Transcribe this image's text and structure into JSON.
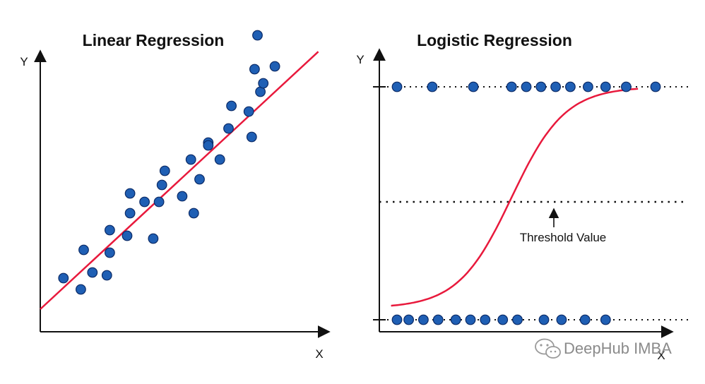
{
  "left_panel": {
    "title": "Linear Regression",
    "y_axis_label": "Y",
    "x_axis_label": "X"
  },
  "right_panel": {
    "title": "Logistic Regression",
    "y_axis_label": "Y",
    "x_axis_label": "X",
    "threshold_label": "Threshold Value"
  },
  "watermark": {
    "text": "DeepHub IMBA",
    "icon": "wechat-icon"
  },
  "colors": {
    "point_fill": "#1f5fb4",
    "point_stroke": "#0b2a66",
    "curve": "#e8193c",
    "axis": "#111111",
    "watermark": "#8a8a8a"
  },
  "chart_data": [
    {
      "type": "scatter",
      "title": "Linear Regression",
      "xlabel": "X",
      "ylabel": "Y",
      "xlim": [
        0,
        100
      ],
      "ylim": [
        0,
        100
      ],
      "grid": false,
      "points": [
        [
          8,
          19
        ],
        [
          14,
          15
        ],
        [
          15,
          29
        ],
        [
          18,
          21
        ],
        [
          23,
          20
        ],
        [
          24,
          28
        ],
        [
          24,
          36
        ],
        [
          30,
          34
        ],
        [
          31,
          42
        ],
        [
          31,
          49
        ],
        [
          36,
          46
        ],
        [
          39,
          33
        ],
        [
          41,
          46
        ],
        [
          42,
          52
        ],
        [
          43,
          57
        ],
        [
          49,
          48
        ],
        [
          52,
          61
        ],
        [
          53,
          42
        ],
        [
          55,
          54
        ],
        [
          58,
          67
        ],
        [
          58,
          66
        ],
        [
          62,
          61
        ],
        [
          65,
          72
        ],
        [
          66,
          80
        ],
        [
          72,
          78
        ],
        [
          73,
          69
        ],
        [
          74,
          93
        ],
        [
          75,
          105
        ],
        [
          76,
          85
        ],
        [
          77,
          88
        ],
        [
          81,
          94
        ]
      ],
      "fit_line": {
        "slope": 0.95,
        "intercept": 8
      }
    },
    {
      "type": "scatter",
      "title": "Logistic Regression",
      "xlabel": "X",
      "ylabel": "Y",
      "xlim": [
        0,
        100
      ],
      "ylim": [
        0,
        1
      ],
      "grid": false,
      "class_1_x": [
        6,
        18,
        32,
        45,
        50,
        55,
        60,
        65,
        71,
        77,
        84,
        94
      ],
      "class_0_x": [
        6,
        10,
        15,
        20,
        26,
        31,
        36,
        42,
        47,
        56,
        62,
        70,
        77
      ],
      "threshold": 0.5,
      "sigmoid": {
        "x_min": 4,
        "x_max": 88,
        "midpoint": 45,
        "steepness": 0.11
      }
    }
  ]
}
